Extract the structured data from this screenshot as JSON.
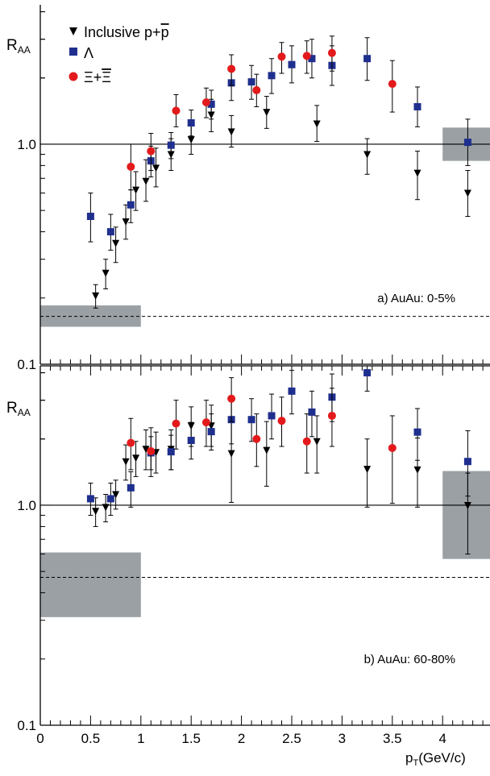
{
  "figure": {
    "ylabel_main": "R",
    "ylabel_sub": "AA",
    "xlabel_main": "p",
    "xlabel_sub": "T",
    "xlabel_unit": "(GeV/c)",
    "legend": [
      {
        "key": "pbar",
        "label": "Inclusive p+p̄"
      },
      {
        "key": "lambda",
        "label": "Λ"
      },
      {
        "key": "xi",
        "label": "Ξ+Ξ̄"
      }
    ]
  },
  "colors": {
    "pbar": "#000000",
    "lambda": "#1f2f8f",
    "xi": "#e31a1c",
    "band": "#9aa0a4",
    "axis": "#000000"
  },
  "chart_data": [
    {
      "type": "scatter",
      "panel": "a",
      "annotation": "a) AuAu: 0-5%",
      "ylabel": "RAA",
      "yscale": "log",
      "ylim": [
        0.1,
        4.3
      ],
      "xlim": [
        0,
        4.5
      ],
      "yticks": [
        {
          "v": 1.0,
          "label": "1.0"
        },
        {
          "v": 0.1,
          "label": "0.1"
        }
      ],
      "xticks": [],
      "reference_lines": {
        "solid": 1.0,
        "dashed": 0.165
      },
      "bands": [
        {
          "x0": 0.0,
          "x1": 1.0,
          "y0": 0.148,
          "y1": 0.185
        },
        {
          "x0": 4.0,
          "x1": 4.5,
          "y0": 0.84,
          "y1": 1.19
        }
      ],
      "series": [
        {
          "name": "Inclusive p+p̄",
          "key": "pbar",
          "marker": "triangle-down",
          "points": [
            {
              "x": 0.55,
              "y": 0.205,
              "lo": 0.18,
              "hi": 0.23
            },
            {
              "x": 0.65,
              "y": 0.26,
              "lo": 0.22,
              "hi": 0.3
            },
            {
              "x": 0.75,
              "y": 0.355,
              "lo": 0.29,
              "hi": 0.42
            },
            {
              "x": 0.85,
              "y": 0.445,
              "lo": 0.37,
              "hi": 0.53
            },
            {
              "x": 0.95,
              "y": 0.62,
              "lo": 0.5,
              "hi": 0.75
            },
            {
              "x": 1.05,
              "y": 0.68,
              "lo": 0.55,
              "hi": 0.85
            },
            {
              "x": 1.15,
              "y": 0.78,
              "lo": 0.64,
              "hi": 0.96
            },
            {
              "x": 1.3,
              "y": 0.9,
              "lo": 0.76,
              "hi": 1.06
            },
            {
              "x": 1.5,
              "y": 1.05,
              "lo": 0.9,
              "hi": 1.22
            },
            {
              "x": 1.7,
              "y": 1.36,
              "lo": 1.14,
              "hi": 1.6
            },
            {
              "x": 1.9,
              "y": 1.14,
              "lo": 0.97,
              "hi": 1.35
            },
            {
              "x": 2.25,
              "y": 1.4,
              "lo": 1.18,
              "hi": 1.65
            },
            {
              "x": 2.75,
              "y": 1.24,
              "lo": 1.03,
              "hi": 1.5
            },
            {
              "x": 3.25,
              "y": 0.9,
              "lo": 0.73,
              "hi": 1.06
            },
            {
              "x": 3.75,
              "y": 0.74,
              "lo": 0.56,
              "hi": 0.93
            },
            {
              "x": 4.25,
              "y": 0.6,
              "lo": 0.47,
              "hi": 0.76
            }
          ]
        },
        {
          "name": "Λ",
          "key": "lambda",
          "marker": "square",
          "points": [
            {
              "x": 0.5,
              "y": 0.47,
              "lo": 0.36,
              "hi": 0.6
            },
            {
              "x": 0.7,
              "y": 0.4,
              "lo": 0.33,
              "hi": 0.48
            },
            {
              "x": 0.9,
              "y": 0.53,
              "lo": 0.44,
              "hi": 0.62
            },
            {
              "x": 1.1,
              "y": 0.84,
              "lo": 0.71,
              "hi": 0.98
            },
            {
              "x": 1.3,
              "y": 0.99,
              "lo": 0.86,
              "hi": 1.13
            },
            {
              "x": 1.5,
              "y": 1.25,
              "lo": 1.09,
              "hi": 1.43
            },
            {
              "x": 1.7,
              "y": 1.52,
              "lo": 1.3,
              "hi": 1.76
            },
            {
              "x": 1.9,
              "y": 1.9,
              "lo": 1.58,
              "hi": 2.24
            },
            {
              "x": 2.1,
              "y": 1.92,
              "lo": 1.6,
              "hi": 2.28
            },
            {
              "x": 2.3,
              "y": 2.05,
              "lo": 1.7,
              "hi": 2.45
            },
            {
              "x": 2.5,
              "y": 2.3,
              "lo": 1.9,
              "hi": 2.8
            },
            {
              "x": 2.7,
              "y": 2.45,
              "lo": 2.0,
              "hi": 3.0
            },
            {
              "x": 2.9,
              "y": 2.28,
              "lo": 1.85,
              "hi": 2.8
            },
            {
              "x": 3.25,
              "y": 2.45,
              "lo": 1.95,
              "hi": 3.05
            },
            {
              "x": 3.75,
              "y": 1.48,
              "lo": 1.2,
              "hi": 1.82
            },
            {
              "x": 4.25,
              "y": 1.02,
              "lo": 0.8,
              "hi": 1.3
            }
          ]
        },
        {
          "name": "Ξ+Ξ̄",
          "key": "xi",
          "marker": "circle",
          "points": [
            {
              "x": 0.9,
              "y": 0.79,
              "lo": 0.62,
              "hi": 1.0
            },
            {
              "x": 1.1,
              "y": 0.93,
              "lo": 0.76,
              "hi": 1.12
            },
            {
              "x": 1.35,
              "y": 1.42,
              "lo": 1.2,
              "hi": 1.68
            },
            {
              "x": 1.65,
              "y": 1.55,
              "lo": 1.32,
              "hi": 1.8
            },
            {
              "x": 1.9,
              "y": 2.2,
              "lo": 1.85,
              "hi": 2.55
            },
            {
              "x": 2.15,
              "y": 1.76,
              "lo": 1.48,
              "hi": 2.08
            },
            {
              "x": 2.4,
              "y": 2.5,
              "lo": 2.1,
              "hi": 2.9
            },
            {
              "x": 2.65,
              "y": 2.52,
              "lo": 2.1,
              "hi": 2.95
            },
            {
              "x": 2.9,
              "y": 2.6,
              "lo": 2.15,
              "hi": 3.1
            },
            {
              "x": 3.5,
              "y": 1.88,
              "lo": 1.4,
              "hi": 2.4
            }
          ]
        }
      ]
    },
    {
      "type": "scatter",
      "panel": "b",
      "annotation": "b) AuAu: 60-80%",
      "ylabel": "RAA",
      "yscale": "log",
      "ylim": [
        0.1,
        4.3
      ],
      "xlim": [
        0,
        4.5
      ],
      "yticks": [
        {
          "v": 1.0,
          "label": "1.0"
        },
        {
          "v": 0.1,
          "label": "0.1"
        }
      ],
      "xticks": [
        {
          "v": 0,
          "label": "0"
        },
        {
          "v": 0.5,
          "label": "0.5"
        },
        {
          "v": 1,
          "label": "1"
        },
        {
          "v": 1.5,
          "label": "1.5"
        },
        {
          "v": 2,
          "label": "2"
        },
        {
          "v": 2.5,
          "label": "2.5"
        },
        {
          "v": 3,
          "label": "3"
        },
        {
          "v": 3.5,
          "label": "3.5"
        },
        {
          "v": 4,
          "label": "4"
        }
      ],
      "reference_lines": {
        "solid": 1.0,
        "dashed": 0.47
      },
      "bands": [
        {
          "x0": 0.0,
          "x1": 1.0,
          "y0": 0.31,
          "y1": 0.61
        },
        {
          "x0": 4.0,
          "x1": 4.5,
          "y0": 0.57,
          "y1": 1.43
        }
      ],
      "series": [
        {
          "name": "Inclusive p+p̄",
          "key": "pbar",
          "marker": "triangle-down",
          "points": [
            {
              "x": 0.55,
              "y": 0.94,
              "lo": 0.8,
              "hi": 1.08
            },
            {
              "x": 0.65,
              "y": 0.98,
              "lo": 0.84,
              "hi": 1.12
            },
            {
              "x": 0.75,
              "y": 1.12,
              "lo": 0.96,
              "hi": 1.3
            },
            {
              "x": 0.85,
              "y": 1.58,
              "lo": 1.3,
              "hi": 1.88
            },
            {
              "x": 0.95,
              "y": 1.64,
              "lo": 1.35,
              "hi": 1.95
            },
            {
              "x": 1.05,
              "y": 1.8,
              "lo": 1.45,
              "hi": 2.2
            },
            {
              "x": 1.15,
              "y": 1.74,
              "lo": 1.4,
              "hi": 2.15
            },
            {
              "x": 1.3,
              "y": 1.8,
              "lo": 1.45,
              "hi": 2.2
            },
            {
              "x": 1.5,
              "y": 2.3,
              "lo": 1.85,
              "hi": 2.8
            },
            {
              "x": 1.7,
              "y": 2.3,
              "lo": 1.85,
              "hi": 2.85
            },
            {
              "x": 1.9,
              "y": 1.72,
              "lo": 1.03,
              "hi": 2.48
            },
            {
              "x": 2.25,
              "y": 1.78,
              "lo": 1.22,
              "hi": 2.4
            },
            {
              "x": 2.75,
              "y": 1.95,
              "lo": 1.4,
              "hi": 2.55
            },
            {
              "x": 3.25,
              "y": 1.46,
              "lo": 0.98,
              "hi": 2.0
            },
            {
              "x": 3.75,
              "y": 1.45,
              "lo": 0.98,
              "hi": 2.02
            },
            {
              "x": 4.25,
              "y": 1.0,
              "lo": 0.6,
              "hi": 1.4
            }
          ]
        },
        {
          "name": "Λ",
          "key": "lambda",
          "marker": "square",
          "points": [
            {
              "x": 0.5,
              "y": 1.07,
              "lo": 0.9,
              "hi": 1.26
            },
            {
              "x": 0.7,
              "y": 1.07,
              "lo": 0.9,
              "hi": 1.26
            },
            {
              "x": 0.9,
              "y": 1.2,
              "lo": 0.98,
              "hi": 1.42
            },
            {
              "x": 1.1,
              "y": 1.73,
              "lo": 1.45,
              "hi": 2.05
            },
            {
              "x": 1.3,
              "y": 1.75,
              "lo": 1.45,
              "hi": 2.08
            },
            {
              "x": 1.5,
              "y": 1.97,
              "lo": 1.62,
              "hi": 2.38
            },
            {
              "x": 1.7,
              "y": 2.16,
              "lo": 1.78,
              "hi": 2.6
            },
            {
              "x": 1.9,
              "y": 2.45,
              "lo": 1.9,
              "hi": 3.05
            },
            {
              "x": 2.1,
              "y": 2.45,
              "lo": 1.95,
              "hi": 3.05
            },
            {
              "x": 2.3,
              "y": 2.55,
              "lo": 2.0,
              "hi": 3.2
            },
            {
              "x": 2.5,
              "y": 3.3,
              "lo": 2.6,
              "hi": 4.1
            },
            {
              "x": 2.7,
              "y": 2.65,
              "lo": 2.05,
              "hi": 3.3
            },
            {
              "x": 2.9,
              "y": 3.1,
              "lo": 2.4,
              "hi": 3.95
            },
            {
              "x": 3.25,
              "y": 4.0,
              "lo": 3.3,
              "hi": 4.6
            },
            {
              "x": 3.75,
              "y": 2.15,
              "lo": 1.6,
              "hi": 2.75
            },
            {
              "x": 4.25,
              "y": 1.58,
              "lo": 1.1,
              "hi": 2.18
            }
          ]
        },
        {
          "name": "Ξ+Ξ̄",
          "key": "xi",
          "marker": "circle",
          "points": [
            {
              "x": 0.9,
              "y": 1.92,
              "lo": 1.45,
              "hi": 2.48
            },
            {
              "x": 1.1,
              "y": 1.76,
              "lo": 1.35,
              "hi": 2.25
            },
            {
              "x": 1.35,
              "y": 2.35,
              "lo": 1.8,
              "hi": 3.0
            },
            {
              "x": 1.65,
              "y": 2.38,
              "lo": 1.85,
              "hi": 3.0
            },
            {
              "x": 1.9,
              "y": 3.05,
              "lo": 2.4,
              "hi": 3.8
            },
            {
              "x": 2.15,
              "y": 2.0,
              "lo": 1.5,
              "hi": 2.6
            },
            {
              "x": 2.4,
              "y": 2.42,
              "lo": 1.85,
              "hi": 3.1
            },
            {
              "x": 2.65,
              "y": 1.95,
              "lo": 1.4,
              "hi": 2.6
            },
            {
              "x": 2.9,
              "y": 2.55,
              "lo": 1.85,
              "hi": 3.4
            },
            {
              "x": 3.5,
              "y": 1.82,
              "lo": 1.02,
              "hi": 2.55
            }
          ]
        }
      ]
    }
  ]
}
